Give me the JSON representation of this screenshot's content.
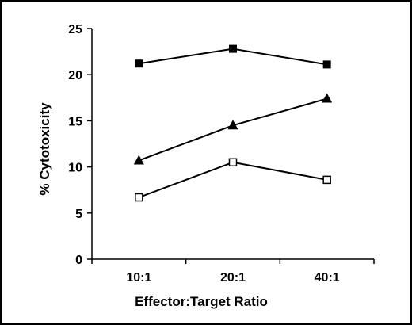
{
  "chart_data": {
    "type": "line",
    "title": "",
    "xlabel": "Effector:Target Ratio",
    "ylabel": "% Cytotoxicity",
    "categories": [
      "10:1",
      "20:1",
      "40:1"
    ],
    "ylim": [
      0,
      25
    ],
    "yticks": [
      "0",
      "5",
      "10",
      "15",
      "20",
      "25"
    ],
    "grid": false,
    "legend": "none",
    "series": [
      {
        "marker": "filled-square",
        "color": "#000000",
        "values": [
          21.2,
          22.8,
          21.1
        ]
      },
      {
        "marker": "filled-triangle",
        "color": "#000000",
        "values": [
          10.7,
          14.5,
          17.4
        ]
      },
      {
        "marker": "open-square",
        "color": "#000000",
        "values": [
          6.7,
          10.5,
          8.6
        ]
      }
    ]
  }
}
